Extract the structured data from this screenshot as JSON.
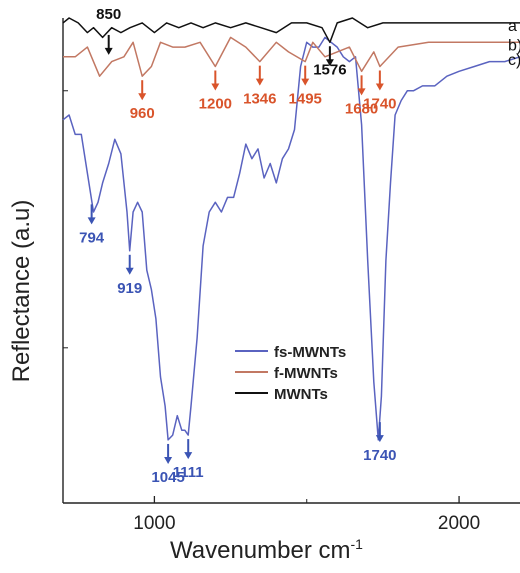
{
  "chart_data": {
    "type": "line",
    "xlabel": "Wavenumber cm",
    "xlabel_superscript": "-1",
    "ylabel": "Reflectance (a.u)",
    "xlim": [
      700,
      2200
    ],
    "xticks": [
      1000,
      2000
    ],
    "xtick_labels": [
      "1000",
      "2000"
    ],
    "ylim": [
      0,
      100
    ],
    "y_ticks_unlabeled": [
      85,
      32
    ],
    "grid": false,
    "legend_position": "center-right",
    "series": [
      {
        "name": "fs-MWNTs",
        "panel_label": "c)",
        "color": "#5a63c0",
        "x": [
          700,
          720,
          740,
          760,
          780,
          800,
          815,
          830,
          850,
          870,
          890,
          910,
          919,
          930,
          945,
          960,
          975,
          990,
          1005,
          1020,
          1035,
          1045,
          1060,
          1075,
          1090,
          1100,
          1111,
          1120,
          1140,
          1160,
          1180,
          1200,
          1220,
          1240,
          1260,
          1280,
          1300,
          1320,
          1340,
          1360,
          1380,
          1400,
          1420,
          1440,
          1460,
          1480,
          1500,
          1520,
          1540,
          1560,
          1580,
          1600,
          1620,
          1640,
          1660,
          1680,
          1700,
          1720,
          1735,
          1745,
          1760,
          1775,
          1790,
          1810,
          1830,
          1850,
          1880,
          1920,
          1960,
          2000,
          2050,
          2100,
          2150,
          2200
        ],
        "y": [
          79,
          80,
          76,
          76,
          68,
          60,
          62,
          66,
          70,
          75,
          72,
          60,
          52,
          60,
          62,
          60,
          48,
          44,
          38,
          26,
          20,
          13,
          14,
          18,
          15,
          15,
          14,
          20,
          34,
          53,
          60,
          62,
          60,
          63,
          63,
          68,
          74,
          71,
          73,
          67,
          70,
          66,
          71,
          73,
          77,
          90,
          95,
          94,
          94,
          96,
          95,
          94,
          92,
          91,
          92,
          78,
          50,
          25,
          13,
          22,
          50,
          66,
          80,
          83,
          85,
          85,
          86,
          86,
          88,
          89,
          90,
          91,
          91,
          92
        ]
      },
      {
        "name": "f-MWNTs",
        "panel_label": "b)",
        "color": "#c27863",
        "x": [
          700,
          740,
          780,
          820,
          860,
          900,
          930,
          960,
          990,
          1020,
          1060,
          1100,
          1150,
          1200,
          1250,
          1300,
          1346,
          1400,
          1440,
          1495,
          1520,
          1560,
          1600,
          1640,
          1680,
          1720,
          1740,
          1800,
          1900,
          2000,
          2100,
          2200
        ],
        "y": [
          92,
          92,
          94,
          88,
          91,
          92,
          95,
          88,
          90,
          95,
          94,
          94,
          95,
          90,
          96,
          94,
          91,
          95,
          93,
          91,
          95,
          92,
          93,
          94,
          89,
          93,
          90,
          94,
          95,
          95,
          95,
          95
        ]
      },
      {
        "name": "MWNTs",
        "panel_label": "a",
        "color": "#111111",
        "x": [
          700,
          720,
          750,
          780,
          800,
          830,
          860,
          890,
          920,
          960,
          1000,
          1040,
          1080,
          1120,
          1160,
          1200,
          1250,
          1300,
          1350,
          1400,
          1450,
          1500,
          1550,
          1576,
          1600,
          1650,
          1700,
          1750,
          1800,
          1900,
          2000,
          2100,
          2200
        ],
        "y": [
          99,
          100,
          99,
          97,
          98,
          96,
          98,
          97,
          98,
          99,
          97,
          99,
          98,
          99,
          98,
          99,
          98,
          99,
          98,
          97,
          99,
          99,
          98,
          95,
          99,
          100,
          98,
          99,
          99,
          99,
          99,
          99,
          99
        ]
      }
    ],
    "annotations": [
      {
        "label": "850",
        "x": 850,
        "series": "MWNTs",
        "color": "#111111"
      },
      {
        "label": "1576",
        "x": 1576,
        "series": "MWNTs",
        "color": "#111111"
      },
      {
        "label": "960",
        "x": 960,
        "series": "f-MWNTs",
        "color": "#d9542b"
      },
      {
        "label": "1200",
        "x": 1200,
        "series": "f-MWNTs",
        "color": "#d9542b"
      },
      {
        "label": "1346",
        "x": 1346,
        "series": "f-MWNTs",
        "color": "#d9542b"
      },
      {
        "label": "1495",
        "x": 1495,
        "series": "f-MWNTs",
        "color": "#d9542b"
      },
      {
        "label": "1680",
        "x": 1680,
        "series": "f-MWNTs",
        "color": "#d9542b"
      },
      {
        "label": "1740",
        "x": 1740,
        "series": "f-MWNTs",
        "color": "#d9542b"
      },
      {
        "label": "794",
        "x": 794,
        "series": "fs-MWNTs",
        "color": "#3b54b4"
      },
      {
        "label": "919",
        "x": 919,
        "series": "fs-MWNTs",
        "color": "#3b54b4"
      },
      {
        "label": "1045",
        "x": 1045,
        "series": "fs-MWNTs",
        "color": "#3b54b4"
      },
      {
        "label": "1111",
        "x": 1111,
        "series": "fs-MWNTs",
        "color": "#3b54b4"
      },
      {
        "label": "1740",
        "x": 1740,
        "series": "fs-MWNTs",
        "color": "#3b54b4"
      }
    ]
  }
}
